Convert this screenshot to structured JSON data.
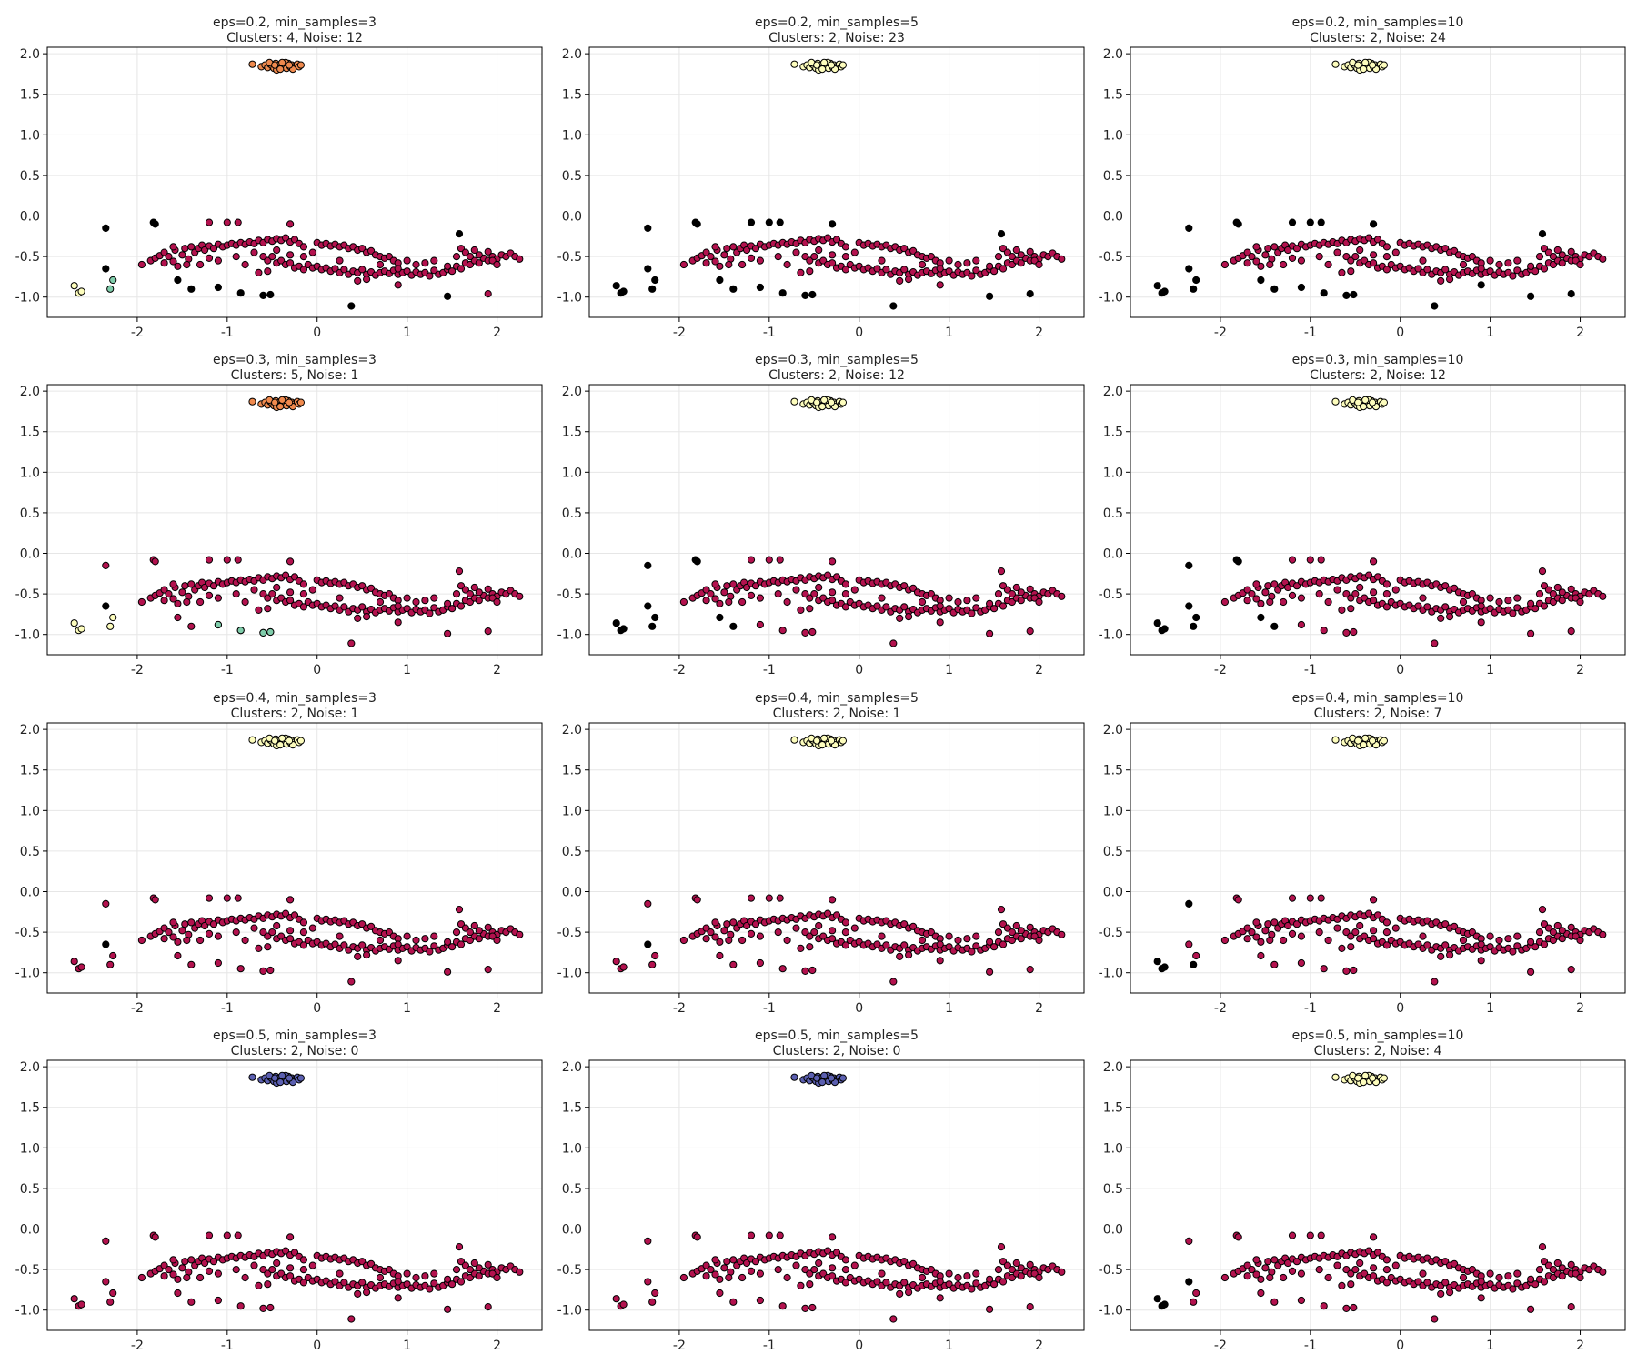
{
  "chart_data": {
    "type": "scatter",
    "layout": "4x3 grid of DBSCAN parameter sweeps over the same dataset",
    "xlim": [
      -3,
      2.5
    ],
    "ylim": [
      -1.25,
      2.08
    ],
    "xticks": [
      -2,
      -1,
      0,
      1,
      2
    ],
    "yticks": [
      -1.0,
      -0.5,
      0.0,
      0.5,
      1.0,
      1.5,
      2.0
    ],
    "xtick_labels": [
      "-2",
      "-1",
      "0",
      "1",
      "2"
    ],
    "ytick_labels": [
      "-1.0",
      "-0.5",
      "0.0",
      "0.5",
      "1.0",
      "1.5",
      "2.0"
    ],
    "grid": true,
    "colors": {
      "noise": "#000000",
      "main_cluster": "#b3124e",
      "top_cluster_orange": "#f08a4e",
      "top_cluster_yellow": "#fdfdbd",
      "top_cluster_blue": "#5b5fb0",
      "outlier_cluster_yellow": "#fdfdbd",
      "outlier_cluster_teal": "#80cdab"
    },
    "panels": [
      {
        "title": "eps=0.2, min_samples=3",
        "subtitle": "Clusters: 4, Noise: 12",
        "eps": 0.2,
        "min_samples": 3,
        "clusters": 4,
        "noise": 12,
        "top_color": "top_cluster_orange",
        "outliers": "cluster",
        "scatter_noise": 12
      },
      {
        "title": "eps=0.2, min_samples=5",
        "subtitle": "Clusters: 2, Noise: 23",
        "eps": 0.2,
        "min_samples": 5,
        "clusters": 2,
        "noise": 23,
        "top_color": "top_cluster_yellow",
        "outliers": "noise",
        "scatter_noise": 17
      },
      {
        "title": "eps=0.2, min_samples=10",
        "subtitle": "Clusters: 2, Noise: 24",
        "eps": 0.2,
        "min_samples": 10,
        "clusters": 2,
        "noise": 24,
        "top_color": "top_cluster_yellow",
        "outliers": "noise",
        "scatter_noise": 18
      },
      {
        "title": "eps=0.3, min_samples=3",
        "subtitle": "Clusters: 5, Noise: 1",
        "eps": 0.3,
        "min_samples": 3,
        "clusters": 5,
        "noise": 1,
        "top_color": "top_cluster_orange",
        "outliers": "cluster_one_noise",
        "scatter_noise": 0
      },
      {
        "title": "eps=0.3, min_samples=5",
        "subtitle": "Clusters: 2, Noise: 12",
        "eps": 0.3,
        "min_samples": 5,
        "clusters": 2,
        "noise": 12,
        "top_color": "top_cluster_yellow",
        "outliers": "noise",
        "scatter_noise": 5
      },
      {
        "title": "eps=0.3, min_samples=10",
        "subtitle": "Clusters: 2, Noise: 12",
        "eps": 0.3,
        "min_samples": 10,
        "clusters": 2,
        "noise": 12,
        "top_color": "top_cluster_yellow",
        "outliers": "noise",
        "scatter_noise": 5
      },
      {
        "title": "eps=0.4, min_samples=3",
        "subtitle": "Clusters: 2, Noise: 1",
        "eps": 0.4,
        "min_samples": 3,
        "clusters": 2,
        "noise": 1,
        "top_color": "top_cluster_yellow",
        "outliers": "main_one_noise",
        "scatter_noise": 0
      },
      {
        "title": "eps=0.4, min_samples=5",
        "subtitle": "Clusters: 2, Noise: 1",
        "eps": 0.4,
        "min_samples": 5,
        "clusters": 2,
        "noise": 1,
        "top_color": "top_cluster_yellow",
        "outliers": "main_one_noise",
        "scatter_noise": 0
      },
      {
        "title": "eps=0.4, min_samples=10",
        "subtitle": "Clusters: 2, Noise: 7",
        "eps": 0.4,
        "min_samples": 10,
        "clusters": 2,
        "noise": 7,
        "top_color": "top_cluster_yellow",
        "outliers": "noise_partial",
        "scatter_noise": 1
      },
      {
        "title": "eps=0.5, min_samples=3",
        "subtitle": "Clusters: 2, Noise: 0",
        "eps": 0.5,
        "min_samples": 3,
        "clusters": 2,
        "noise": 0,
        "top_color": "top_cluster_blue",
        "outliers": "main",
        "scatter_noise": 0
      },
      {
        "title": "eps=0.5, min_samples=5",
        "subtitle": "Clusters: 2, Noise: 0",
        "eps": 0.5,
        "min_samples": 5,
        "clusters": 2,
        "noise": 0,
        "top_color": "top_cluster_blue",
        "outliers": "main",
        "scatter_noise": 0
      },
      {
        "title": "eps=0.5, min_samples=10",
        "subtitle": "Clusters: 2, Noise: 4",
        "eps": 0.5,
        "min_samples": 10,
        "clusters": 2,
        "noise": 4,
        "top_color": "top_cluster_yellow",
        "outliers": "noise_partial2",
        "scatter_noise": 0
      }
    ],
    "points": {
      "top_cluster": [
        [
          -0.72,
          1.87
        ],
        [
          -0.62,
          1.84
        ],
        [
          -0.58,
          1.86
        ],
        [
          -0.55,
          1.83
        ],
        [
          -0.52,
          1.87
        ],
        [
          -0.5,
          1.85
        ],
        [
          -0.48,
          1.82
        ],
        [
          -0.46,
          1.88
        ],
        [
          -0.44,
          1.84
        ],
        [
          -0.42,
          1.86
        ],
        [
          -0.4,
          1.83
        ],
        [
          -0.38,
          1.87
        ],
        [
          -0.36,
          1.85
        ],
        [
          -0.34,
          1.82
        ],
        [
          -0.32,
          1.88
        ],
        [
          -0.3,
          1.84
        ],
        [
          -0.28,
          1.86
        ],
        [
          -0.26,
          1.83
        ],
        [
          -0.24,
          1.85
        ],
        [
          -0.22,
          1.87
        ],
        [
          -0.2,
          1.84
        ],
        [
          -0.18,
          1.86
        ],
        [
          -0.45,
          1.8
        ],
        [
          -0.35,
          1.89
        ],
        [
          -0.27,
          1.81
        ],
        [
          -0.53,
          1.89
        ],
        [
          -0.41,
          1.81
        ],
        [
          -0.31,
          1.86
        ],
        [
          -0.39,
          1.89
        ],
        [
          -0.47,
          1.86
        ]
      ],
      "outlier_group": [
        [
          -2.7,
          -0.86
        ],
        [
          -2.65,
          -0.95
        ],
        [
          -2.62,
          -0.93
        ],
        [
          -2.35,
          -0.65
        ],
        [
          -2.3,
          -0.9
        ],
        [
          -2.27,
          -0.79
        ]
      ],
      "noise_scatter": [
        [
          -2.35,
          -0.15
        ],
        [
          -1.82,
          -0.08
        ],
        [
          -1.8,
          -0.1
        ],
        [
          -1.55,
          -0.79
        ],
        [
          -1.4,
          -0.9
        ],
        [
          -1.1,
          -0.88
        ],
        [
          -0.85,
          -0.95
        ],
        [
          -0.6,
          -0.98
        ],
        [
          -0.52,
          -0.97
        ],
        [
          0.38,
          -1.11
        ],
        [
          1.45,
          -0.99
        ],
        [
          1.58,
          -0.22
        ],
        [
          -1.0,
          -0.08
        ],
        [
          -0.88,
          -0.08
        ],
        [
          -1.2,
          -0.08
        ],
        [
          -0.3,
          -0.1
        ],
        [
          1.9,
          -0.96
        ],
        [
          0.9,
          -0.85
        ]
      ],
      "main_band": [
        [
          -1.95,
          -0.6
        ],
        [
          -1.85,
          -0.55
        ],
        [
          -1.8,
          -0.52
        ],
        [
          -1.75,
          -0.49
        ],
        [
          -1.7,
          -0.45
        ],
        [
          -1.65,
          -0.5
        ],
        [
          -1.6,
          -0.56
        ],
        [
          -1.58,
          -0.42
        ],
        [
          -1.55,
          -0.62
        ],
        [
          -1.5,
          -0.48
        ],
        [
          -1.47,
          -0.4
        ],
        [
          -1.43,
          -0.53
        ],
        [
          -1.4,
          -0.38
        ],
        [
          -1.36,
          -0.45
        ],
        [
          -1.32,
          -0.4
        ],
        [
          -1.28,
          -0.36
        ],
        [
          -1.25,
          -0.42
        ],
        [
          -1.2,
          -0.37
        ],
        [
          -1.15,
          -0.4
        ],
        [
          -1.1,
          -0.35
        ],
        [
          -1.05,
          -0.38
        ],
        [
          -1.0,
          -0.36
        ],
        [
          -0.95,
          -0.34
        ],
        [
          -0.9,
          -0.36
        ],
        [
          -0.85,
          -0.33
        ],
        [
          -0.8,
          -0.35
        ],
        [
          -0.75,
          -0.32
        ],
        [
          -0.7,
          -0.34
        ],
        [
          -0.65,
          -0.3
        ],
        [
          -0.6,
          -0.33
        ],
        [
          -0.55,
          -0.29
        ],
        [
          -0.5,
          -0.31
        ],
        [
          -0.45,
          -0.28
        ],
        [
          -0.4,
          -0.3
        ],
        [
          -0.35,
          -0.27
        ],
        [
          -0.3,
          -0.32
        ],
        [
          -0.25,
          -0.29
        ],
        [
          -0.2,
          -0.34
        ],
        [
          -0.15,
          -0.38
        ],
        [
          -1.3,
          -0.6
        ],
        [
          -1.2,
          -0.52
        ],
        [
          -1.6,
          -0.38
        ],
        [
          -1.7,
          -0.58
        ],
        [
          -0.9,
          -0.5
        ],
        [
          -0.7,
          -0.45
        ],
        [
          -0.6,
          -0.5
        ],
        [
          -0.55,
          -0.55
        ],
        [
          -0.5,
          -0.5
        ],
        [
          -0.45,
          -0.58
        ],
        [
          -0.4,
          -0.55
        ],
        [
          -0.35,
          -0.6
        ],
        [
          -0.3,
          -0.58
        ],
        [
          -0.25,
          -0.64
        ],
        [
          -0.2,
          -0.62
        ],
        [
          -0.15,
          -0.66
        ],
        [
          -0.1,
          -0.6
        ],
        [
          -0.05,
          -0.64
        ],
        [
          0.0,
          -0.62
        ],
        [
          0.05,
          -0.66
        ],
        [
          0.1,
          -0.64
        ],
        [
          0.15,
          -0.68
        ],
        [
          0.2,
          -0.65
        ],
        [
          0.25,
          -0.7
        ],
        [
          0.3,
          -0.66
        ],
        [
          0.35,
          -0.72
        ],
        [
          0.4,
          -0.68
        ],
        [
          0.45,
          -0.7
        ],
        [
          0.5,
          -0.66
        ],
        [
          0.55,
          -0.72
        ],
        [
          0.6,
          -0.69
        ],
        [
          0.65,
          -0.73
        ],
        [
          0.7,
          -0.7
        ],
        [
          0.75,
          -0.68
        ],
        [
          0.8,
          -0.71
        ],
        [
          0.85,
          -0.67
        ],
        [
          0.9,
          -0.72
        ],
        [
          0.95,
          -0.7
        ],
        [
          1.0,
          -0.68
        ],
        [
          1.05,
          -0.73
        ],
        [
          1.1,
          -0.69
        ],
        [
          1.15,
          -0.72
        ],
        [
          1.2,
          -0.7
        ],
        [
          1.25,
          -0.74
        ],
        [
          1.3,
          -0.67
        ],
        [
          1.35,
          -0.72
        ],
        [
          1.4,
          -0.7
        ],
        [
          1.45,
          -0.66
        ],
        [
          1.5,
          -0.68
        ],
        [
          1.55,
          -0.62
        ],
        [
          1.6,
          -0.65
        ],
        [
          1.65,
          -0.58
        ],
        [
          1.7,
          -0.6
        ],
        [
          1.75,
          -0.55
        ],
        [
          1.8,
          -0.58
        ],
        [
          1.85,
          -0.52
        ],
        [
          1.9,
          -0.55
        ],
        [
          1.95,
          -0.5
        ],
        [
          2.0,
          -0.53
        ],
        [
          2.05,
          -0.48
        ],
        [
          2.1,
          -0.5
        ],
        [
          2.15,
          -0.46
        ],
        [
          2.2,
          -0.5
        ],
        [
          2.25,
          -0.53
        ],
        [
          0.0,
          -0.33
        ],
        [
          0.05,
          -0.36
        ],
        [
          0.1,
          -0.34
        ],
        [
          0.15,
          -0.37
        ],
        [
          0.2,
          -0.35
        ],
        [
          0.25,
          -0.38
        ],
        [
          0.3,
          -0.36
        ],
        [
          0.35,
          -0.4
        ],
        [
          0.4,
          -0.38
        ],
        [
          0.45,
          -0.42
        ],
        [
          0.5,
          -0.4
        ],
        [
          0.55,
          -0.45
        ],
        [
          0.6,
          -0.43
        ],
        [
          0.65,
          -0.48
        ],
        [
          0.7,
          -0.5
        ],
        [
          0.75,
          -0.52
        ],
        [
          0.8,
          -0.5
        ],
        [
          0.85,
          -0.55
        ],
        [
          0.9,
          -0.58
        ],
        [
          1.0,
          -0.55
        ],
        [
          1.1,
          -0.6
        ],
        [
          1.6,
          -0.4
        ],
        [
          1.65,
          -0.45
        ],
        [
          1.7,
          -0.5
        ],
        [
          1.75,
          -0.42
        ],
        [
          1.8,
          -0.48
        ],
        [
          1.9,
          -0.44
        ],
        [
          1.95,
          -0.55
        ],
        [
          2.0,
          -0.6
        ],
        [
          -0.8,
          -0.6
        ],
        [
          -0.65,
          -0.7
        ],
        [
          -0.55,
          -0.68
        ],
        [
          -0.15,
          -0.5
        ],
        [
          -0.05,
          -0.45
        ],
        [
          0.45,
          -0.8
        ],
        [
          0.55,
          -0.78
        ],
        [
          0.9,
          -0.65
        ],
        [
          1.3,
          -0.55
        ],
        [
          1.45,
          -0.62
        ],
        [
          1.55,
          -0.5
        ],
        [
          -1.1,
          -0.55
        ],
        [
          -1.45,
          -0.6
        ],
        [
          -0.3,
          -0.48
        ],
        [
          0.7,
          -0.6
        ],
        [
          0.25,
          -0.55
        ],
        [
          -0.45,
          -0.42
        ],
        [
          1.2,
          -0.58
        ]
      ]
    }
  }
}
